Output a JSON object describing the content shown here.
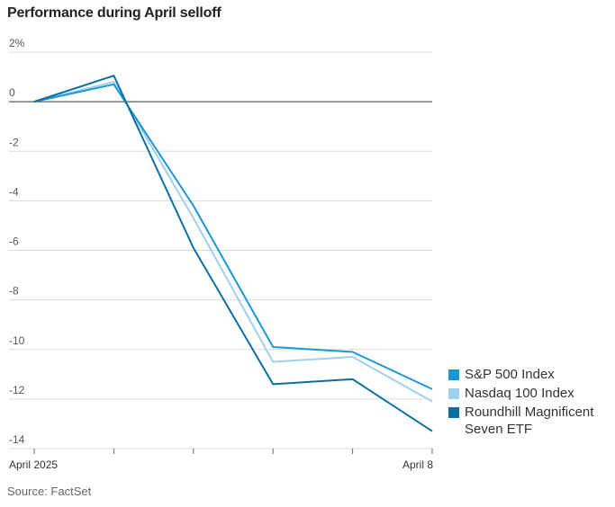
{
  "title": "Performance during April selloff",
  "source": "Source: FactSet",
  "chart_data": {
    "type": "line",
    "title": "Performance during April selloff",
    "x": [
      "April 2025",
      "",
      "",
      "",
      "",
      "April 8"
    ],
    "x_tick_labels": [
      "April 2025",
      "April 8"
    ],
    "ylim": [
      -14,
      2
    ],
    "y_ticks": [
      {
        "value": 2,
        "label": "2%"
      },
      {
        "value": 0,
        "label": "0"
      },
      {
        "value": -2,
        "label": "-2"
      },
      {
        "value": -4,
        "label": "-4"
      },
      {
        "value": -6,
        "label": "-6"
      },
      {
        "value": -8,
        "label": "-8"
      },
      {
        "value": -10,
        "label": "-10"
      },
      {
        "value": -12,
        "label": "-12"
      },
      {
        "value": -14,
        "label": "-14"
      }
    ],
    "grid": true,
    "legend_position": "bottom-right",
    "series": [
      {
        "name": "S&P 500 Index",
        "color": "#1a97d4",
        "values": [
          0,
          0.7,
          -4.2,
          -9.9,
          -10.1,
          -11.6
        ]
      },
      {
        "name": "Nasdaq 100 Index",
        "color": "#9fd0ef",
        "values": [
          0,
          0.8,
          -4.7,
          -10.5,
          -10.3,
          -12.1
        ]
      },
      {
        "name": "Roundhill Magnificent Seven ETF",
        "color": "#0b6fa4",
        "values": [
          0,
          1.05,
          -5.9,
          -11.4,
          -11.2,
          -13.3
        ]
      }
    ]
  }
}
